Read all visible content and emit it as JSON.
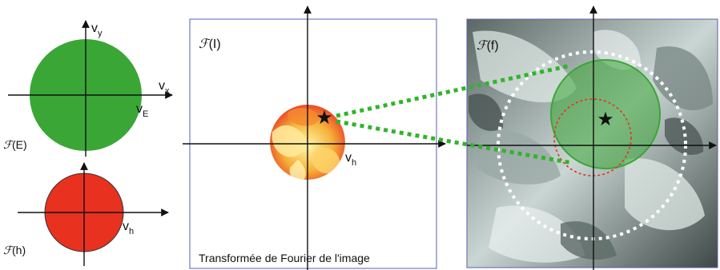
{
  "panels": {
    "emitter": {
      "axis_x": {
        "main": "v",
        "sub": "x"
      },
      "axis_y": {
        "main": "v",
        "sub": "y"
      },
      "radius_label": {
        "main": "v",
        "sub": "E"
      },
      "name": {
        "symbol": "ℱ",
        "text": "(E)"
      },
      "color": "#3aa636"
    },
    "pupil": {
      "radius_label": {
        "main": "v",
        "sub": "h"
      },
      "name": {
        "symbol": "ℱ",
        "text": "(h)"
      },
      "color": "#e8311f"
    },
    "image_ft": {
      "name": {
        "symbol": "ℱ",
        "text": "(I)"
      },
      "radius_label": {
        "main": "v",
        "sub": "h"
      },
      "caption": "Transformée de Fourier de l'image",
      "star_icon": "star-icon",
      "frame_color": "#5a5fb0"
    },
    "object_ft": {
      "name": {
        "symbol": "ℱ",
        "text": "(f)"
      },
      "star_icon": "star-icon",
      "frame_color": "#5a5fb0",
      "support_color": "#ffffff",
      "shifted_pupil_color": "#e8311f",
      "illumination_color": "#3aa636"
    }
  },
  "connector_color": "#2fb52a"
}
